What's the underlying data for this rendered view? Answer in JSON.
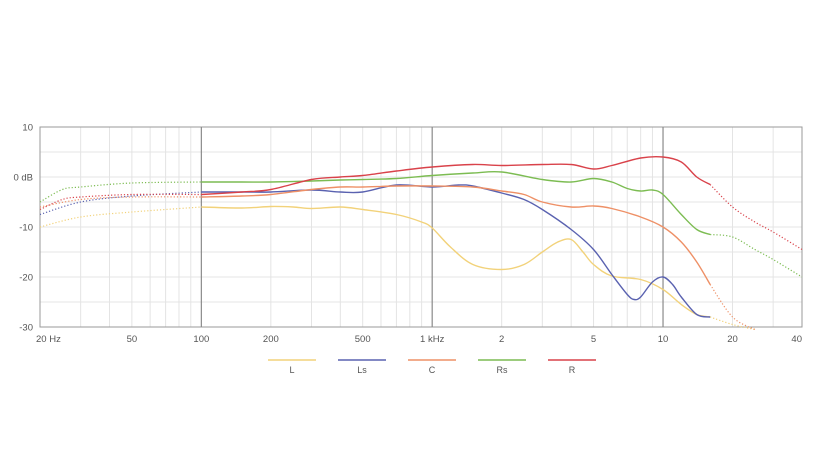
{
  "chart_data": {
    "type": "line",
    "title": "",
    "xlabel": "",
    "ylabel": "",
    "x_scale": "log",
    "xlim": [
      20,
      40000
    ],
    "ylim": [
      -30,
      10
    ],
    "grid": true,
    "legend_placement": "bottom-center",
    "x_ticks": [
      {
        "value": 20,
        "label": "20 Hz"
      },
      {
        "value": 50,
        "label": "50"
      },
      {
        "value": 100,
        "label": "100"
      },
      {
        "value": 200,
        "label": "200"
      },
      {
        "value": 500,
        "label": "500"
      },
      {
        "value": 1000,
        "label": "1 kHz"
      },
      {
        "value": 2000,
        "label": "2"
      },
      {
        "value": 5000,
        "label": "5"
      },
      {
        "value": 10000,
        "label": "10"
      },
      {
        "value": 20000,
        "label": "20"
      },
      {
        "value": 40000,
        "label": "40"
      }
    ],
    "y_ticks": [
      {
        "value": 10,
        "label": "10"
      },
      {
        "value": 0,
        "label": "0 dB"
      },
      {
        "value": -10,
        "label": "-10"
      },
      {
        "value": -20,
        "label": "-20"
      },
      {
        "value": -30,
        "label": "-30"
      }
    ],
    "series": [
      {
        "name": "L",
        "color": "#f2d27a",
        "x": [
          20,
          30,
          50,
          100,
          150,
          200,
          250,
          300,
          400,
          500,
          700,
          900,
          1000,
          1200,
          1500,
          2000,
          2500,
          3000,
          3500,
          4000,
          4500,
          5000,
          6000,
          8000,
          10000,
          12000,
          14000,
          16000,
          20000,
          25000
        ],
        "y": [
          -10,
          -8,
          -7,
          -6,
          -6.2,
          -5.9,
          -6,
          -6.3,
          -6,
          -6.5,
          -7.5,
          -9,
          -10.2,
          -14,
          -17.5,
          -18.5,
          -17.5,
          -15,
          -13,
          -12.5,
          -15,
          -17.5,
          -19.8,
          -20.5,
          -22.5,
          -25.5,
          -27.5,
          -28,
          -29.5,
          -30.5
        ],
        "solid_from": 100,
        "solid_to": 16000
      },
      {
        "name": "Ls",
        "color": "#5a62b0",
        "x": [
          20,
          30,
          50,
          100,
          150,
          200,
          300,
          400,
          500,
          700,
          1000,
          1300,
          1500,
          2000,
          2500,
          3000,
          4000,
          5000,
          6000,
          7000,
          7500,
          8000,
          9000,
          10000,
          11000,
          12000,
          14000,
          16000
        ],
        "y": [
          -7.5,
          -5,
          -3.8,
          -3,
          -3,
          -3,
          -2.6,
          -3,
          -3,
          -1.6,
          -2,
          -1.6,
          -1.8,
          -3.2,
          -4.5,
          -6.5,
          -10.5,
          -14.5,
          -19.5,
          -23.5,
          -24.5,
          -24,
          -21,
          -20,
          -21.5,
          -24,
          -27.5,
          -28
        ],
        "solid_from": 100,
        "solid_to": 16000
      },
      {
        "name": "C",
        "color": "#ee9066",
        "x": [
          20,
          30,
          50,
          100,
          150,
          200,
          300,
          400,
          500,
          700,
          1000,
          1500,
          2000,
          2500,
          3000,
          4000,
          5000,
          6000,
          8000,
          10000,
          12000,
          14000,
          16000,
          20000,
          25000
        ],
        "y": [
          -6,
          -4.5,
          -4,
          -4,
          -3.8,
          -3.5,
          -2.5,
          -2,
          -2,
          -1.8,
          -1.8,
          -2,
          -2.8,
          -3.5,
          -5,
          -6,
          -5.8,
          -6.3,
          -8,
          -10,
          -13,
          -17,
          -21.5,
          -28,
          -30.5
        ],
        "solid_from": 100,
        "solid_to": 16000
      },
      {
        "name": "Rs",
        "color": "#7cbc52",
        "x": [
          20,
          25,
          30,
          50,
          100,
          150,
          200,
          300,
          400,
          500,
          700,
          1000,
          1500,
          2000,
          3000,
          4000,
          5000,
          6000,
          7000,
          8000,
          9000,
          10000,
          12000,
          14000,
          16000,
          20000,
          25000,
          30000,
          40000
        ],
        "y": [
          -5,
          -2.5,
          -2,
          -1.2,
          -1,
          -1,
          -1,
          -0.8,
          -0.6,
          -0.5,
          -0.3,
          0.3,
          0.8,
          1,
          -0.5,
          -1,
          -0.3,
          -1,
          -2.3,
          -2.8,
          -2.6,
          -3.5,
          -7.5,
          -10.5,
          -11.5,
          -12,
          -14.5,
          -16.5,
          -20
        ],
        "solid_from": 100,
        "solid_to": 16000
      },
      {
        "name": "R",
        "color": "#d9424a",
        "x": [
          20,
          25,
          30,
          50,
          100,
          150,
          200,
          300,
          400,
          500,
          700,
          1000,
          1500,
          2000,
          3000,
          4000,
          5000,
          6000,
          8000,
          10000,
          12000,
          14000,
          16000,
          20000,
          25000,
          30000,
          40000
        ],
        "y": [
          -6.5,
          -4.5,
          -4,
          -3.5,
          -3.5,
          -3,
          -2.5,
          -0.5,
          0,
          0.3,
          1.2,
          2,
          2.5,
          2.3,
          2.5,
          2.5,
          1.6,
          2.3,
          3.8,
          4,
          3,
          0,
          -1.5,
          -6,
          -9,
          -11,
          -14.5
        ],
        "solid_from": 100,
        "solid_to": 16000
      }
    ]
  }
}
